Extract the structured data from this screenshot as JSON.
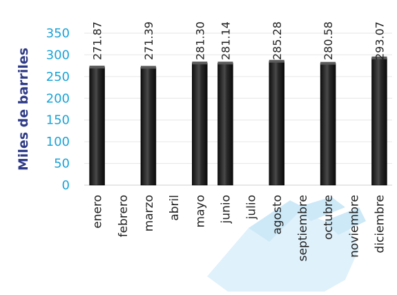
{
  "chart_data": {
    "type": "bar",
    "ylabel": "Miles de barriles",
    "ylim": [
      0,
      350
    ],
    "yticks": [
      0,
      50,
      100,
      150,
      200,
      250,
      300,
      350
    ],
    "grid": true,
    "categories": [
      "enero",
      "febrero",
      "marzo",
      "abril",
      "mayo",
      "junio",
      "julio",
      "agosto",
      "septiembre",
      "octubre",
      "noviembre",
      "diciembre"
    ],
    "values": [
      271.87,
      null,
      271.39,
      null,
      281.3,
      281.14,
      null,
      285.28,
      null,
      280.58,
      null,
      293.07
    ],
    "data_labels": [
      "271.87",
      "",
      "271.39",
      "",
      "281.30",
      "281.14",
      "",
      "285.28",
      "",
      "280.58",
      "",
      "293.07"
    ]
  },
  "colors": {
    "bar_fill": "#1b1b1b",
    "bar_highlight": "#5a5a5a",
    "axis_label": "#2e3a86",
    "tick_label": "#1aa3d6",
    "gridline": "#e6e6e6",
    "watermark": "#d3ecf8"
  }
}
